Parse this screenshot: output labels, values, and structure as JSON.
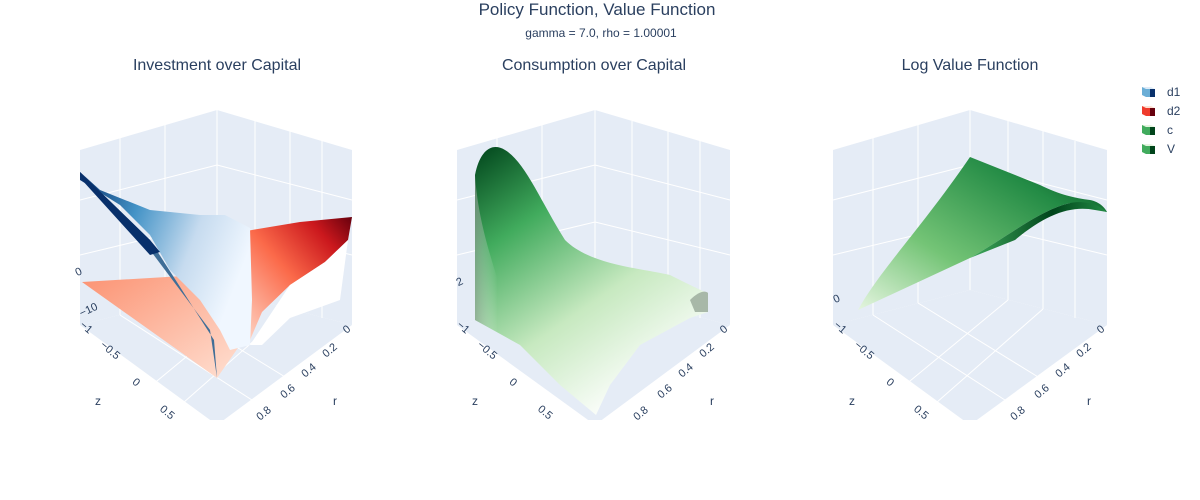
{
  "figure": {
    "title": "Policy Function, Value Function",
    "subtitle": "gamma = 7.0, rho = 1.00001"
  },
  "legend": [
    {
      "name": "d1",
      "colors": [
        "#08306b",
        "#6baed6",
        "#deebf7"
      ]
    },
    {
      "name": "d2",
      "colors": [
        "#67000d",
        "#ef3b2c",
        "#fee0d2"
      ]
    },
    {
      "name": "c",
      "colors": [
        "#00441b",
        "#41ab5d",
        "#e5f5e0"
      ]
    },
    {
      "name": "V",
      "colors": [
        "#00441b",
        "#41ab5d",
        "#e5f5e0"
      ]
    }
  ],
  "chart_data": [
    {
      "type": "surface",
      "title": "Investment over Capital",
      "xlabel": "r",
      "ylabel": "z",
      "x_ticks": [
        "0",
        "0.2",
        "0.4",
        "0.6",
        "0.8"
      ],
      "y_ticks": [
        "−1",
        "−0.5",
        "0",
        "0.5"
      ],
      "z_ticks": [
        "−10",
        "0"
      ],
      "series": [
        {
          "name": "d1",
          "colorscale": "Blues",
          "description": "blue surface descending from upper-left toward bottom"
        },
        {
          "name": "d2",
          "colorscale": "Reds",
          "description": "red surface rising toward right"
        }
      ]
    },
    {
      "type": "surface",
      "title": "Consumption over Capital",
      "xlabel": "r",
      "ylabel": "z",
      "x_ticks": [
        "0",
        "0.2",
        "0.4",
        "0.6",
        "0.8"
      ],
      "y_ticks": [
        "−1",
        "−0.5",
        "0",
        "0.5"
      ],
      "z_ticks": [
        "2"
      ],
      "series": [
        {
          "name": "c",
          "colorscale": "Greens"
        }
      ]
    },
    {
      "type": "surface",
      "title": "Log Value Function",
      "xlabel": "r",
      "ylabel": "z",
      "x_ticks": [
        "0",
        "0.2",
        "0.4",
        "0.6",
        "0.8"
      ],
      "y_ticks": [
        "−1",
        "−0.5",
        "0",
        "0.5"
      ],
      "z_ticks": [
        "0"
      ],
      "series": [
        {
          "name": "V",
          "colorscale": "Greens"
        }
      ]
    }
  ]
}
